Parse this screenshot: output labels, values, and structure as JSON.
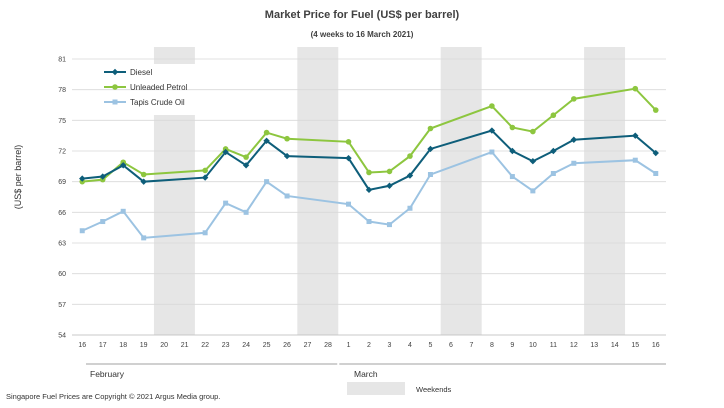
{
  "chart_data": {
    "type": "line",
    "title": "Market Price for Fuel (US$  per barrel)",
    "subtitle": "(4 weeks to 16 March 2021)",
    "ylabel": "(US$ per barrel)",
    "xlabel": "",
    "ylim": [
      54,
      81
    ],
    "yticks": [
      54,
      57,
      60,
      63,
      66,
      69,
      72,
      75,
      78,
      81
    ],
    "categories": [
      "16",
      "17",
      "18",
      "19",
      "20",
      "21",
      "22",
      "23",
      "24",
      "25",
      "26",
      "27",
      "28",
      "1",
      "2",
      "3",
      "4",
      "5",
      "6",
      "7",
      "8",
      "9",
      "10",
      "11",
      "12",
      "13",
      "14",
      "15",
      "16"
    ],
    "month_labels": [
      "February",
      "March"
    ],
    "weekend_label": "Weekends",
    "weekend_ranges": [
      [
        "20",
        "21"
      ],
      [
        "27",
        "28"
      ],
      [
        "6",
        "7"
      ],
      [
        "13",
        "14"
      ]
    ],
    "grid": true,
    "legend": "top-left",
    "series": [
      {
        "name": "Diesel",
        "color": "#0e5e7a",
        "marker": "diamond",
        "values": [
          69.3,
          69.5,
          70.6,
          69.0,
          null,
          null,
          69.4,
          71.9,
          70.6,
          73.0,
          71.5,
          null,
          null,
          71.3,
          68.2,
          68.6,
          69.6,
          72.2,
          null,
          null,
          74.0,
          72.0,
          71.0,
          72.0,
          73.1,
          null,
          null,
          73.5,
          71.8
        ]
      },
      {
        "name": "Unleaded Petrol",
        "color": "#8dc63f",
        "marker": "circle",
        "values": [
          69.0,
          69.2,
          70.9,
          69.7,
          null,
          null,
          70.1,
          72.2,
          71.4,
          73.8,
          73.2,
          null,
          null,
          72.9,
          69.9,
          70.0,
          71.5,
          74.2,
          null,
          null,
          76.4,
          74.3,
          73.9,
          75.5,
          77.1,
          null,
          null,
          78.1,
          76.0
        ]
      },
      {
        "name": "Tapis Crude Oil",
        "color": "#9cc3e2",
        "marker": "square",
        "values": [
          64.2,
          65.1,
          66.1,
          63.5,
          null,
          null,
          64.0,
          66.9,
          66.0,
          69.0,
          67.6,
          null,
          null,
          66.8,
          65.1,
          64.8,
          66.4,
          69.7,
          null,
          null,
          71.9,
          69.5,
          68.1,
          69.8,
          70.8,
          null,
          null,
          71.1,
          69.8
        ]
      }
    ]
  },
  "footer": {
    "copyright": "Singapore  Fuel Prices are Copyright © 2021 Argus Media group."
  }
}
